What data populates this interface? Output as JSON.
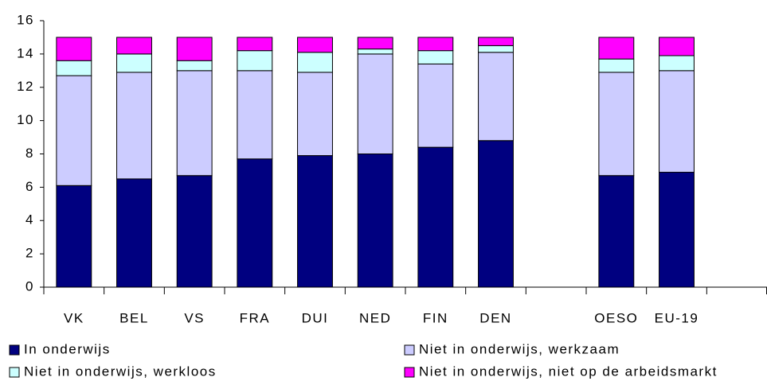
{
  "chart_data": {
    "type": "stacked_bar",
    "categories": [
      "VK",
      "BEL",
      "VS",
      "FRA",
      "DUI",
      "NED",
      "FIN",
      "DEN",
      null,
      "OESO",
      "EU-19",
      null
    ],
    "series": [
      {
        "name": "In onderwijs",
        "color": "#000080",
        "values": [
          6.1,
          6.5,
          6.7,
          7.7,
          7.9,
          8.0,
          8.4,
          8.8,
          null,
          6.7,
          6.9,
          null
        ]
      },
      {
        "name": "Niet in onderwijs, werkzaam",
        "color": "#ccccff",
        "values": [
          6.6,
          6.4,
          6.3,
          5.3,
          5.0,
          6.0,
          5.0,
          5.3,
          null,
          6.2,
          6.1,
          null
        ]
      },
      {
        "name": "Niet in onderwijs, werkloos",
        "color": "#ccffff",
        "values": [
          0.9,
          1.1,
          0.6,
          1.2,
          1.2,
          0.3,
          0.8,
          0.4,
          null,
          0.8,
          0.9,
          null
        ]
      },
      {
        "name": "Niet in onderwijs, niet op de arbeidsmarkt",
        "color": "#ff00ff",
        "values": [
          1.4,
          1.0,
          1.4,
          0.8,
          0.9,
          0.7,
          0.8,
          0.5,
          null,
          1.3,
          1.1,
          null
        ]
      }
    ],
    "ylim": [
      0,
      16
    ],
    "yticks": [
      0,
      2,
      4,
      6,
      8,
      10,
      12,
      14,
      16
    ],
    "legend": "bottom"
  }
}
